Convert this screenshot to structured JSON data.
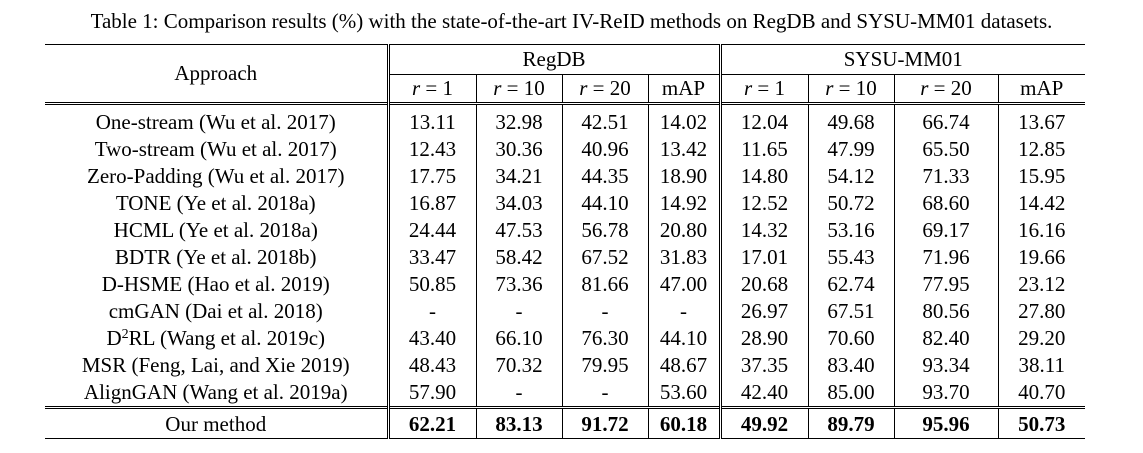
{
  "caption": "Table 1: Comparison results (%) with the state-of-the-art IV-ReID methods on RegDB and SYSU-MM01 datasets.",
  "header": {
    "approach": "Approach",
    "groups": [
      "RegDB",
      "SYSU-MM01"
    ],
    "rank_var": "r",
    "ranks": [
      "= 1",
      "= 10",
      "= 20"
    ],
    "map": "mAP"
  },
  "rows": [
    {
      "method": "One-stream (Wu et al. 2017)",
      "values": [
        "13.11",
        "32.98",
        "42.51",
        "14.02",
        "12.04",
        "49.68",
        "66.74",
        "13.67"
      ]
    },
    {
      "method": "Two-stream (Wu et al. 2017)",
      "values": [
        "12.43",
        "30.36",
        "40.96",
        "13.42",
        "11.65",
        "47.99",
        "65.50",
        "12.85"
      ]
    },
    {
      "method": "Zero-Padding (Wu et al. 2017)",
      "values": [
        "17.75",
        "34.21",
        "44.35",
        "18.90",
        "14.80",
        "54.12",
        "71.33",
        "15.95"
      ]
    },
    {
      "method": "TONE (Ye et al. 2018a)",
      "values": [
        "16.87",
        "34.03",
        "44.10",
        "14.92",
        "12.52",
        "50.72",
        "68.60",
        "14.42"
      ]
    },
    {
      "method": "HCML (Ye et al. 2018a)",
      "values": [
        "24.44",
        "47.53",
        "56.78",
        "20.80",
        "14.32",
        "53.16",
        "69.17",
        "16.16"
      ]
    },
    {
      "method": "BDTR (Ye et al. 2018b)",
      "values": [
        "33.47",
        "58.42",
        "67.52",
        "31.83",
        "17.01",
        "55.43",
        "71.96",
        "19.66"
      ]
    },
    {
      "method": "D-HSME (Hao et al. 2019)",
      "values": [
        "50.85",
        "73.36",
        "81.66",
        "47.00",
        "20.68",
        "62.74",
        "77.95",
        "23.12"
      ]
    },
    {
      "method": "cmGAN (Dai et al. 2018)",
      "values": [
        "-",
        "-",
        "-",
        "-",
        "26.97",
        "67.51",
        "80.56",
        "27.80"
      ]
    },
    {
      "method_prefix": "D",
      "method_sup": "2",
      "method_suffix": "RL (Wang et al. 2019c)",
      "values": [
        "43.40",
        "66.10",
        "76.30",
        "44.10",
        "28.90",
        "70.60",
        "82.40",
        "29.20"
      ]
    },
    {
      "method": "MSR (Feng, Lai, and Xie 2019)",
      "values": [
        "48.43",
        "70.32",
        "79.95",
        "48.67",
        "37.35",
        "83.40",
        "93.34",
        "38.11"
      ]
    },
    {
      "method": "AlignGAN (Wang et al. 2019a)",
      "values": [
        "57.90",
        "-",
        "-",
        "53.60",
        "42.40",
        "85.00",
        "93.70",
        "40.70"
      ]
    }
  ],
  "ours": {
    "method": "Our method",
    "values": [
      "62.21",
      "83.13",
      "91.72",
      "60.18",
      "49.92",
      "89.79",
      "95.96",
      "50.73"
    ]
  }
}
